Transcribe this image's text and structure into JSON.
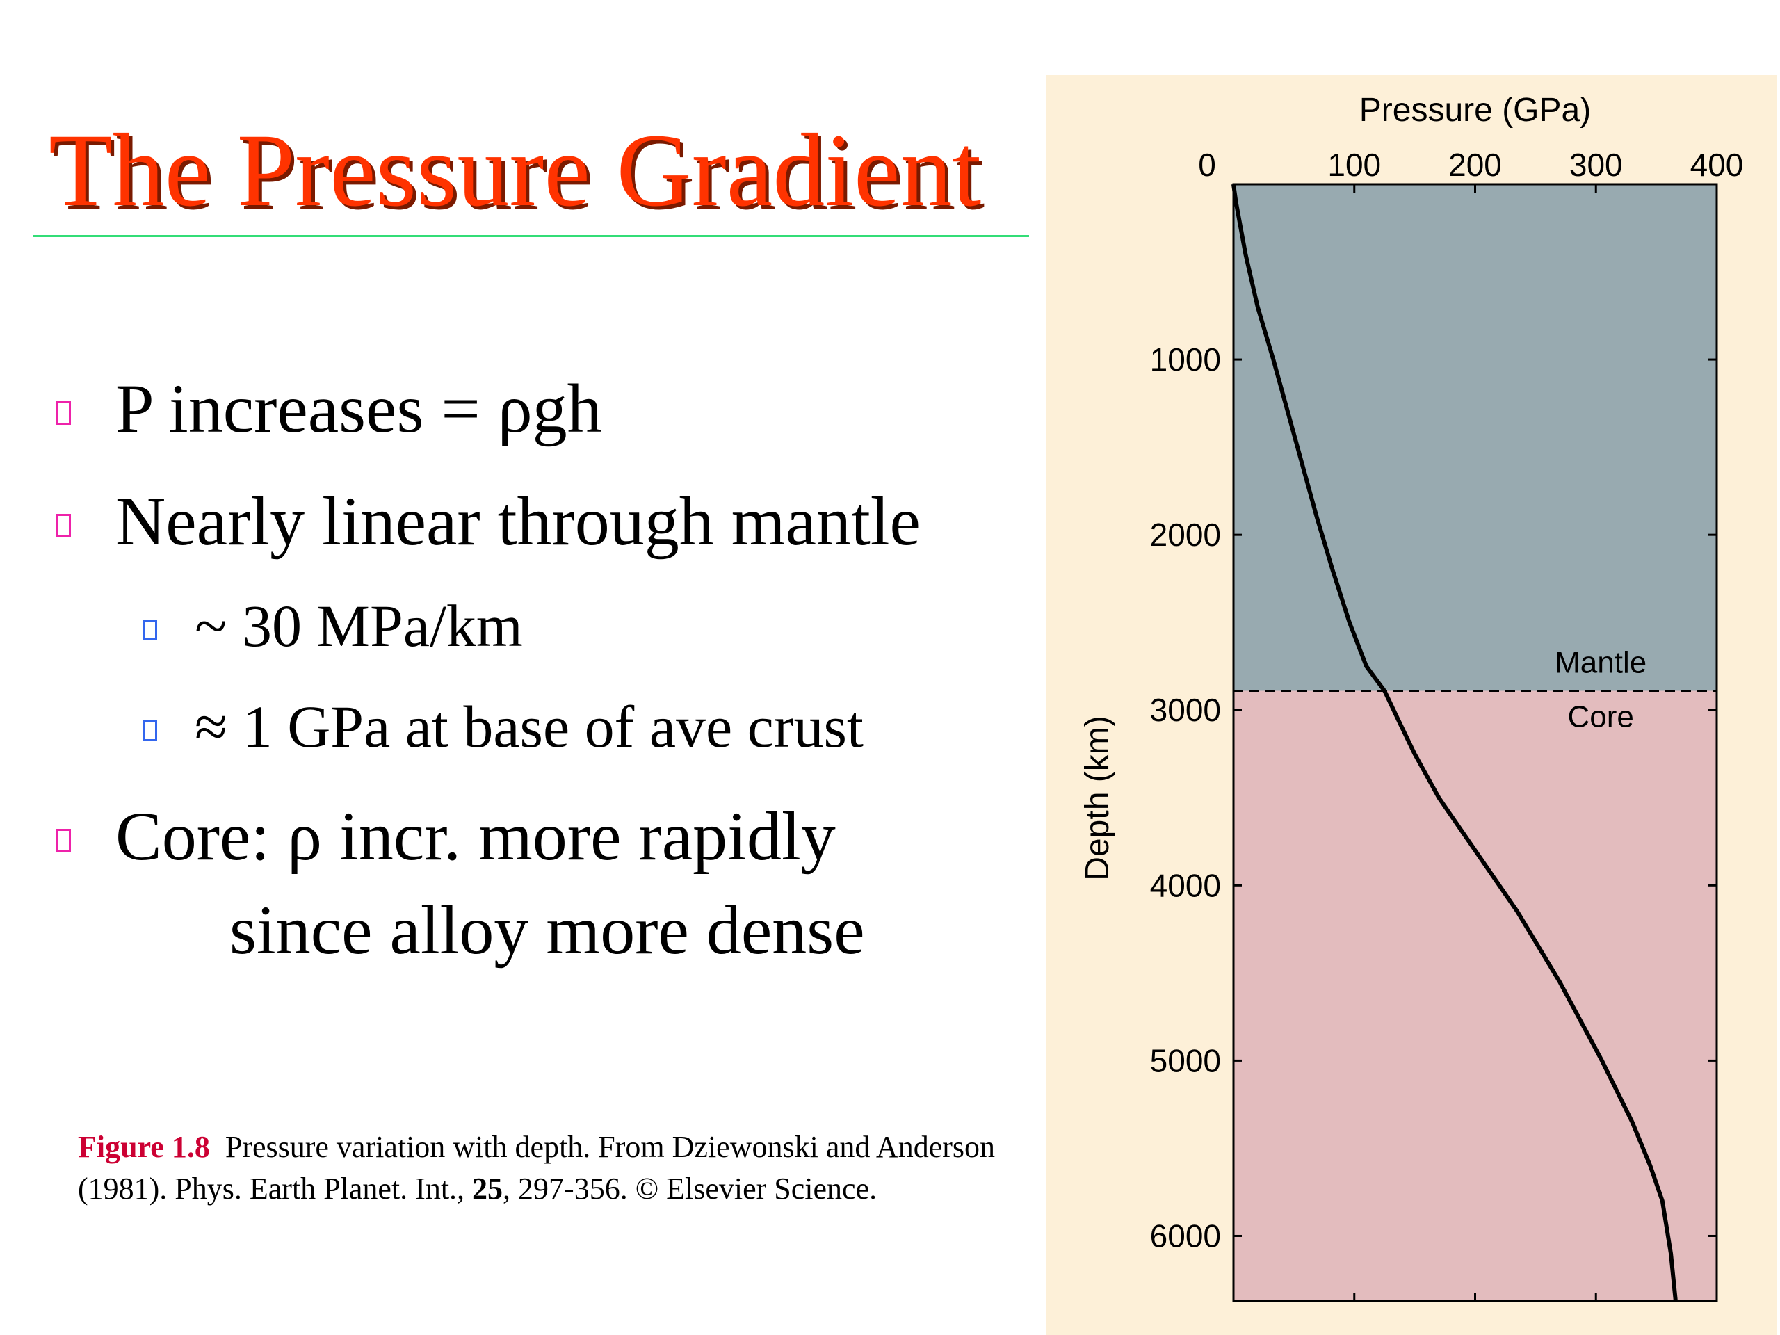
{
  "slide": {
    "title": "The Pressure Gradient",
    "bullets": [
      {
        "text": "P increases = ρgh"
      },
      {
        "text": "Nearly linear through mantle"
      },
      {
        "text": "~ 30 MPa/km"
      },
      {
        "text": "≈ 1 GPa at base of ave crust"
      },
      {
        "text": "Core: ρ incr. more rapidly",
        "continuation": "since alloy more dense"
      }
    ],
    "caption": {
      "label": "Figure 1.8",
      "text_1": "Pressure variation with depth. From Dziewonski and Anderson (1981). Phys. Earth Planet. Int., ",
      "volume": "25",
      "text_2": ", 297-356. © Elsevier Science."
    }
  },
  "colors": {
    "title": "#ff3300",
    "title_shadow": "#7a1a00",
    "rule": "#33dd77",
    "bullet_level1": "#ee22aa",
    "bullet_level2": "#3366ee",
    "caption_label": "#cc0033",
    "panel_background": "#fdf0d8",
    "mantle_fill": "#98aab0",
    "core_fill": "#e3bcbe",
    "curve": "#000000"
  },
  "chart_data": {
    "type": "line",
    "xlabel": "Pressure (GPa)",
    "ylabel": "Depth (km)",
    "xlim": [
      0,
      400
    ],
    "ylim": [
      0,
      6371
    ],
    "y_inverted": true,
    "x_axis_position": "top",
    "xticks": [
      0,
      100,
      200,
      300,
      400
    ],
    "yticks": [
      1000,
      2000,
      3000,
      4000,
      5000,
      6000
    ],
    "regions": [
      {
        "label": "Mantle",
        "from": 0,
        "to": 2890
      },
      {
        "label": "Core",
        "from": 2890,
        "to": 6371
      }
    ],
    "boundary_depth": 2890,
    "series": [
      {
        "x": [
          0,
          2,
          10,
          20,
          33,
          45,
          57,
          69,
          82,
          96,
          110,
          125,
          136,
          150,
          170,
          200,
          235,
          270,
          305,
          330,
          345,
          355,
          362,
          366
        ],
        "y": [
          0,
          100,
          400,
          700,
          1000,
          1300,
          1600,
          1900,
          2200,
          2500,
          2750,
          2890,
          3050,
          3250,
          3500,
          3800,
          4150,
          4550,
          5000,
          5350,
          5600,
          5800,
          6100,
          6371
        ]
      }
    ]
  }
}
